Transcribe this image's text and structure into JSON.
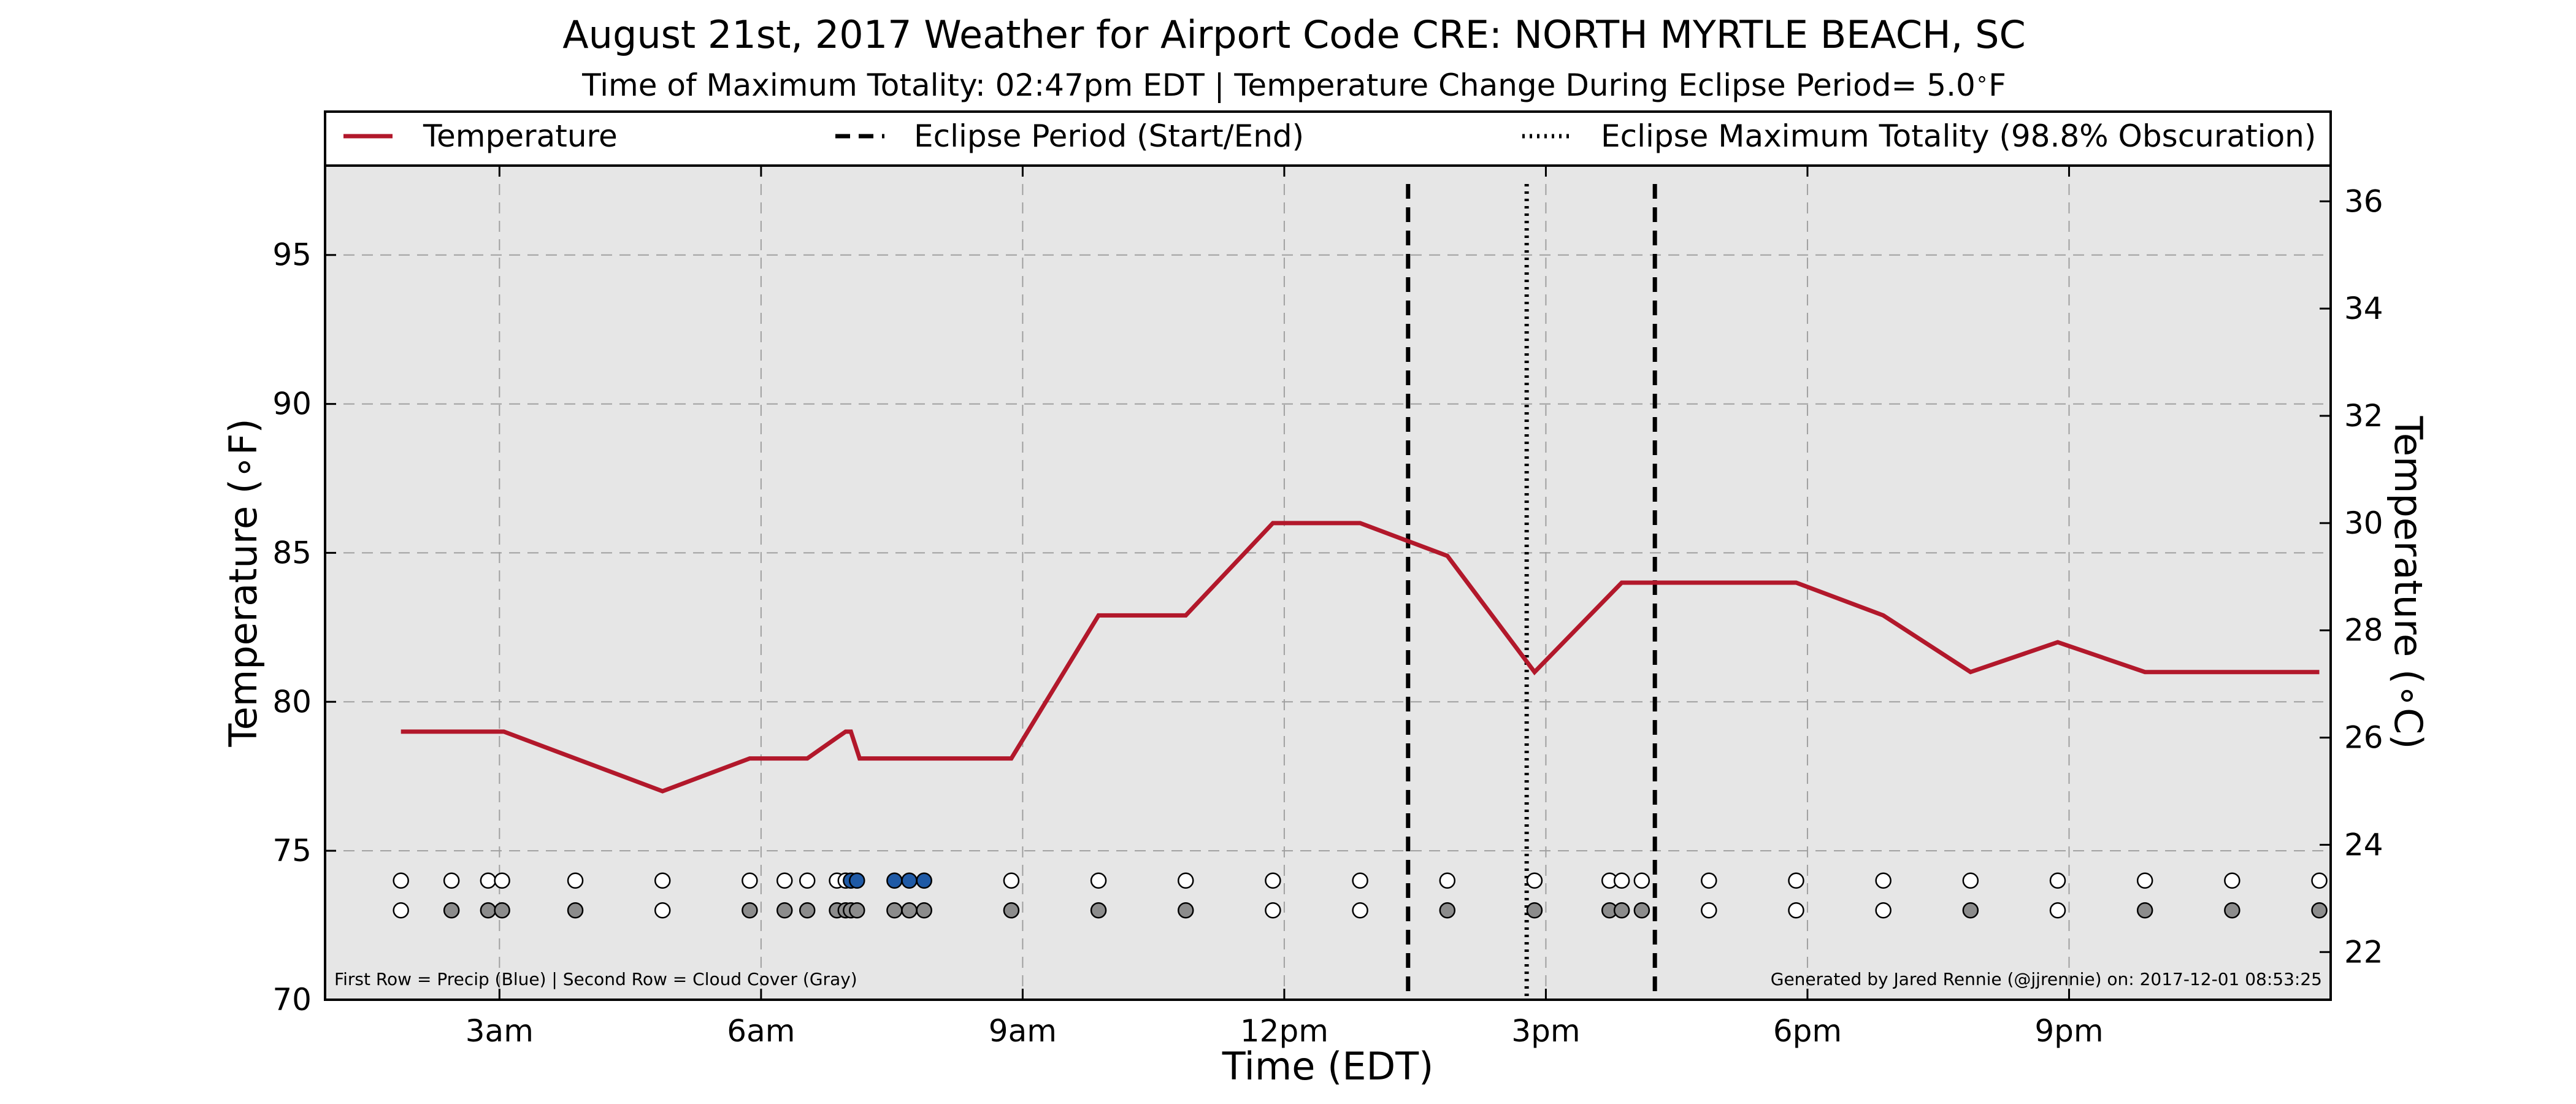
{
  "chart_data": {
    "type": "line",
    "title": "August 21st, 2017 Weather for Airport Code CRE: NORTH MYRTLE BEACH, SC",
    "subtitle": "Time of Maximum Totality: 02:47pm EDT | Temperature Change During Eclipse Period= 5.0$^\\circ$F",
    "subtitle_parts": {
      "before": "Time of Maximum Totality: 02:47pm EDT | Temperature Change During Eclipse Period= 5.0",
      "degree": "∘",
      "unit": "F"
    },
    "xlabel": "Time (EDT)",
    "ylabel": "Temperature (∘F)",
    "ylabel_right": "Temperature (∘C)",
    "xlim": [
      1.0,
      24.0
    ],
    "ylim": [
      70,
      98
    ],
    "ylim_right_celsius": [
      21.11,
      36.67
    ],
    "x_ticks": [
      {
        "value": 3,
        "label": "3am"
      },
      {
        "value": 6,
        "label": "6am"
      },
      {
        "value": 9,
        "label": "9am"
      },
      {
        "value": 12,
        "label": "12pm"
      },
      {
        "value": 15,
        "label": "3pm"
      },
      {
        "value": 18,
        "label": "6pm"
      },
      {
        "value": 21,
        "label": "9pm"
      }
    ],
    "y_ticks": [
      70,
      75,
      80,
      85,
      90,
      95
    ],
    "y_ticks_right": [
      22,
      24,
      26,
      28,
      30,
      32,
      34,
      36
    ],
    "grid": true,
    "legend_position": "top",
    "legend": [
      {
        "label": "Temperature",
        "style": "solid",
        "color": "#b2182b"
      },
      {
        "label": "Eclipse Period (Start/End)",
        "style": "dashed",
        "color": "#000000"
      },
      {
        "label": "Eclipse Maximum Totality (98.8% Obscuration)",
        "style": "dotted",
        "color": "#000000"
      }
    ],
    "series": [
      {
        "name": "Temperature",
        "color": "#b2182b",
        "x": [
          1.87,
          3.05,
          4.87,
          5.87,
          6.53,
          6.87,
          6.97,
          7.03,
          7.13,
          8.87,
          9.87,
          10.87,
          11.87,
          12.87,
          13.87,
          14.87,
          15.87,
          16.87,
          17.87,
          18.87,
          19.87,
          20.87,
          21.87,
          22.87,
          23.87
        ],
        "values": [
          79,
          79,
          77,
          78.1,
          78.1,
          78.8,
          79,
          79,
          78.1,
          78.1,
          82.9,
          82.9,
          86,
          86,
          84.9,
          81,
          84,
          84,
          84,
          82.9,
          81,
          82,
          81,
          81,
          81
        ]
      }
    ],
    "vertical_lines": [
      {
        "name": "Eclipse Period Start",
        "x": 13.42,
        "style": "dashed"
      },
      {
        "name": "Eclipse Maximum Totality",
        "x": 14.78,
        "style": "dotted"
      },
      {
        "name": "Eclipse Period End",
        "x": 16.25,
        "style": "dashed"
      }
    ],
    "precip_row": {
      "y": 74,
      "points": [
        {
          "x": 1.87,
          "precip": false
        },
        {
          "x": 2.45,
          "precip": false
        },
        {
          "x": 2.87,
          "precip": false
        },
        {
          "x": 3.03,
          "precip": false
        },
        {
          "x": 3.87,
          "precip": false
        },
        {
          "x": 4.87,
          "precip": false
        },
        {
          "x": 5.87,
          "precip": false
        },
        {
          "x": 6.27,
          "precip": false
        },
        {
          "x": 6.53,
          "precip": false
        },
        {
          "x": 6.87,
          "precip": false
        },
        {
          "x": 6.97,
          "precip": false
        },
        {
          "x": 7.03,
          "precip": true
        },
        {
          "x": 7.1,
          "precip": true
        },
        {
          "x": 7.53,
          "precip": true
        },
        {
          "x": 7.7,
          "precip": true
        },
        {
          "x": 7.87,
          "precip": true
        },
        {
          "x": 8.87,
          "precip": false
        },
        {
          "x": 9.87,
          "precip": false
        },
        {
          "x": 10.87,
          "precip": false
        },
        {
          "x": 11.87,
          "precip": false
        },
        {
          "x": 12.87,
          "precip": false
        },
        {
          "x": 13.87,
          "precip": false
        },
        {
          "x": 14.87,
          "precip": false
        },
        {
          "x": 15.73,
          "precip": false
        },
        {
          "x": 15.87,
          "precip": false
        },
        {
          "x": 16.1,
          "precip": false
        },
        {
          "x": 16.87,
          "precip": false
        },
        {
          "x": 17.87,
          "precip": false
        },
        {
          "x": 18.87,
          "precip": false
        },
        {
          "x": 19.87,
          "precip": false
        },
        {
          "x": 20.87,
          "precip": false
        },
        {
          "x": 21.87,
          "precip": false
        },
        {
          "x": 22.87,
          "precip": false
        },
        {
          "x": 23.87,
          "precip": false
        }
      ]
    },
    "cloud_row": {
      "y": 73,
      "points": [
        {
          "x": 1.87,
          "cloud": false
        },
        {
          "x": 2.45,
          "cloud": true
        },
        {
          "x": 2.87,
          "cloud": true
        },
        {
          "x": 3.03,
          "cloud": true
        },
        {
          "x": 3.87,
          "cloud": true
        },
        {
          "x": 4.87,
          "cloud": false
        },
        {
          "x": 5.87,
          "cloud": true
        },
        {
          "x": 6.27,
          "cloud": true
        },
        {
          "x": 6.53,
          "cloud": true
        },
        {
          "x": 6.87,
          "cloud": true
        },
        {
          "x": 6.97,
          "cloud": true
        },
        {
          "x": 7.03,
          "cloud": true
        },
        {
          "x": 7.1,
          "cloud": true
        },
        {
          "x": 7.53,
          "cloud": true
        },
        {
          "x": 7.7,
          "cloud": true
        },
        {
          "x": 7.87,
          "cloud": true
        },
        {
          "x": 8.87,
          "cloud": true
        },
        {
          "x": 9.87,
          "cloud": true
        },
        {
          "x": 10.87,
          "cloud": true
        },
        {
          "x": 11.87,
          "cloud": false
        },
        {
          "x": 12.87,
          "cloud": false
        },
        {
          "x": 13.87,
          "cloud": true
        },
        {
          "x": 14.87,
          "cloud": true
        },
        {
          "x": 15.73,
          "cloud": true
        },
        {
          "x": 15.87,
          "cloud": true
        },
        {
          "x": 16.1,
          "cloud": true
        },
        {
          "x": 16.87,
          "cloud": false
        },
        {
          "x": 17.87,
          "cloud": false
        },
        {
          "x": 18.87,
          "cloud": false
        },
        {
          "x": 19.87,
          "cloud": true
        },
        {
          "x": 20.87,
          "cloud": false
        },
        {
          "x": 21.87,
          "cloud": true
        },
        {
          "x": 22.87,
          "cloud": true
        },
        {
          "x": 23.87,
          "cloud": true
        }
      ]
    },
    "colors": {
      "precip": "#1f5aa6",
      "cloud": "#8c8c8c",
      "empty": "#ffffff",
      "plot_background": "#e6e6e6",
      "grid": "#a0a0a0"
    },
    "footnote_left": "First Row = Precip (Blue) | Second Row = Cloud Cover (Gray)",
    "footnote_right": "Generated by Jared Rennie (@jjrennie) on: 2017-12-01 08:53:25"
  }
}
